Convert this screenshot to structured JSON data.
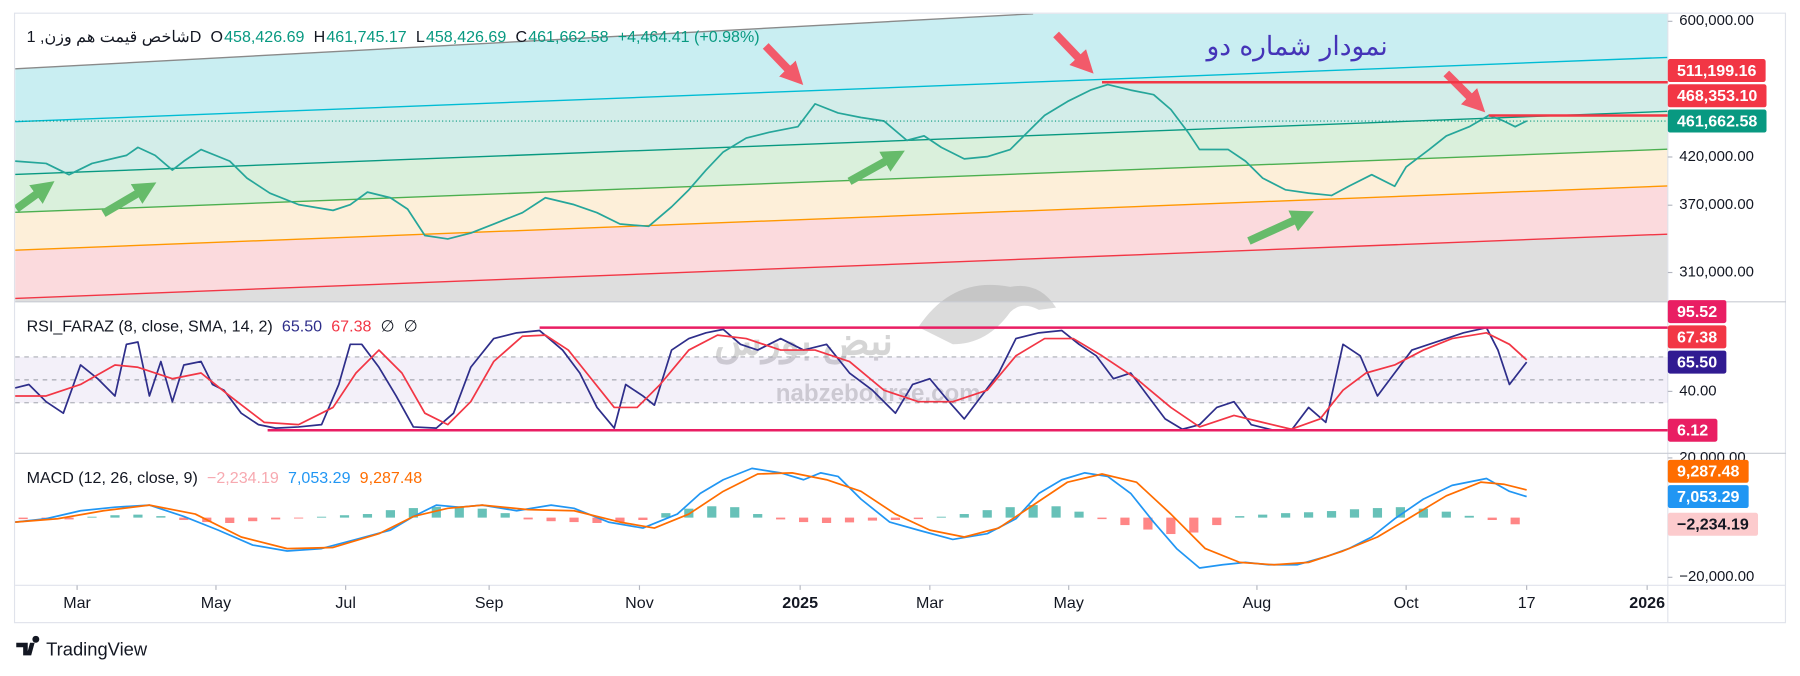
{
  "chart_data": [
    {
      "type": "line",
      "log": true,
      "header": {
        "color": "#131722",
        "items": [
          {
            "text": "شاخص قیمت هم وزن, 1D"
          },
          {
            "key": "O",
            "text": "458,426.69",
            "color": "#089981"
          },
          {
            "key": "H",
            "text": "461,745.17",
            "color": "#089981"
          },
          {
            "key": "L",
            "text": "458,426.69",
            "color": "#089981"
          },
          {
            "key": "C",
            "text": "461,662.58",
            "color": "#089981"
          },
          {
            "text": "+4,464.41 (+0.98%)",
            "color": "#089981"
          }
        ]
      },
      "xlim": [
        13,
        1453
      ],
      "ylim": [
        287000,
        612000
      ],
      "yticks": [
        {
          "value": 600000,
          "label": "600,000.00"
        },
        {
          "value": 420000,
          "label": "420,000.00"
        },
        {
          "value": 370000,
          "label": "370,000.00"
        },
        {
          "value": 310000,
          "label": "310,000.00"
        }
      ],
      "series": [
        {
          "color": "#26a69a",
          "x": [
            13,
            40,
            60,
            80,
            110,
            120,
            135,
            150,
            160,
            175,
            200,
            215,
            235,
            260,
            290,
            305,
            320,
            340,
            355,
            370,
            390,
            410,
            430,
            455,
            475,
            500,
            520,
            540,
            565,
            585,
            600,
            615,
            630,
            650,
            670,
            695,
            710,
            730,
            750,
            770,
            790,
            805,
            820,
            840,
            860,
            880,
            895,
            910,
            930,
            950,
            965,
            985,
            1005,
            1020,
            1035,
            1045,
            1070,
            1085,
            1100,
            1120,
            1140,
            1160,
            1175,
            1195,
            1215,
            1225,
            1245,
            1260,
            1280,
            1297,
            1310,
            1320,
            1330
          ],
          "values": [
            415500,
            413000,
            400900,
            413000,
            421800,
            430800,
            421800,
            405800,
            415500,
            428300,
            415500,
            397300,
            381900,
            370600,
            365000,
            370600,
            383000,
            377300,
            366200,
            341700,
            338600,
            343800,
            352100,
            362800,
            377300,
            370600,
            362800,
            352100,
            350000,
            368400,
            385300,
            405800,
            425600,
            441400,
            448100,
            454800,
            483000,
            471600,
            465900,
            461700,
            438700,
            444000,
            430800,
            418000,
            420400,
            428300,
            448100,
            468600,
            486000,
            500800,
            508000,
            500800,
            494800,
            475800,
            448100,
            428300,
            428300,
            415500,
            397300,
            385300,
            381900,
            379600,
            388900,
            400900,
            388900,
            409200,
            428300,
            444000,
            454800,
            468600,
            461700,
            454800,
            461662.58
          ]
        }
      ],
      "levels": [
        {
          "value": 511199.16,
          "label": "511,199.16",
          "color": "#f23645",
          "line_from": 960
        },
        {
          "value": 468353.1,
          "label": "468,353.10",
          "color": "#f23645",
          "line_from": 1297
        },
        {
          "value": 461662.58,
          "label": "461,662.58",
          "color": "#089981",
          "line_from": 13,
          "line_style": "dotted"
        }
      ]
    },
    {
      "type": "line",
      "header": {
        "color": "#131722",
        "items": [
          {
            "text": "RSI_FARAZ (8, close, SMA, 14, 2)"
          },
          {
            "text": "65.50",
            "color": "#2e2e8a"
          },
          {
            "text": "67.38",
            "color": "#f23645"
          },
          {
            "text": "∅"
          },
          {
            "text": "∅"
          }
        ]
      },
      "xlim": [
        13,
        1453
      ],
      "ylim": [
        -14,
        118
      ],
      "yticks": [
        {
          "value": 40,
          "label": "40.00"
        }
      ],
      "hlines": [
        70,
        50,
        30
      ],
      "band_color": "#7e57c2",
      "series": [
        {
          "color": "#2e2e8a",
          "x": [
            13,
            25,
            40,
            55,
            70,
            85,
            100,
            110,
            120,
            130,
            140,
            150,
            160,
            175,
            185,
            195,
            210,
            225,
            240,
            260,
            280,
            295,
            305,
            315,
            330,
            345,
            360,
            380,
            395,
            410,
            430,
            450,
            470,
            490,
            505,
            520,
            535,
            545,
            560,
            570,
            585,
            600,
            615,
            630,
            645,
            660,
            680,
            700,
            720,
            740,
            760,
            780,
            795,
            810,
            825,
            840,
            855,
            870,
            885,
            905,
            925,
            940,
            955,
            970,
            985,
            1000,
            1015,
            1030,
            1045,
            1060,
            1075,
            1090,
            1110,
            1125,
            1140,
            1155,
            1170,
            1185,
            1200,
            1215,
            1230,
            1245,
            1260,
            1275,
            1295,
            1305,
            1315,
            1330
          ],
          "values": [
            43,
            46,
            31,
            21,
            63,
            51,
            36,
            81,
            83,
            36,
            66,
            31,
            63,
            66,
            46,
            41,
            21,
            11,
            8,
            9,
            11,
            46,
            81,
            81,
            61,
            36,
            9,
            8,
            21,
            61,
            86,
            91,
            93,
            76,
            56,
            26,
            8,
            46,
            36,
            28,
            76,
            86,
            91,
            94,
            81,
            76,
            86,
            76,
            81,
            56,
            41,
            21,
            46,
            51,
            33,
            16,
            36,
            56,
            86,
            91,
            93,
            81,
            71,
            51,
            56,
            36,
            16,
            7,
            11,
            26,
            31,
            11,
            6,
            6.12,
            26,
            13,
            81,
            71,
            36,
            56,
            76,
            81,
            86,
            91,
            95.52,
            76,
            46,
            65.5
          ]
        },
        {
          "color": "#f23645",
          "x": [
            13,
            40,
            70,
            100,
            120,
            150,
            175,
            200,
            230,
            260,
            290,
            310,
            330,
            350,
            370,
            390,
            410,
            430,
            455,
            475,
            495,
            515,
            535,
            555,
            575,
            600,
            625,
            650,
            680,
            710,
            740,
            770,
            800,
            830,
            860,
            885,
            910,
            935,
            960,
            990,
            1020,
            1045,
            1075,
            1100,
            1125,
            1150,
            1170,
            1190,
            1215,
            1240,
            1265,
            1295,
            1315,
            1330
          ],
          "values": [
            36,
            36,
            46,
            63,
            61,
            51,
            56,
            36,
            13,
            11,
            26,
            56,
            76,
            56,
            21,
            11,
            31,
            66,
            88,
            89,
            76,
            51,
            26,
            26,
            46,
            76,
            89,
            86,
            76,
            76,
            66,
            41,
            31,
            31,
            41,
            71,
            86,
            86,
            71,
            51,
            26,
            9,
            19,
            13,
            7,
            16,
            41,
            56,
            63,
            76,
            86,
            91,
            81,
            67.38
          ]
        }
      ],
      "levels": [
        {
          "value": 95.52,
          "label": "95.52",
          "color": "#e91e63",
          "line_from": 470
        },
        {
          "value": 67.38,
          "label": "67.38",
          "color": "#f23645"
        },
        {
          "value": 65.5,
          "label": "65.50",
          "color": "#311b92"
        },
        {
          "value": 6.12,
          "label": "6.12",
          "color": "#e91e63",
          "line_from": 233
        }
      ]
    },
    {
      "type": "line",
      "header": {
        "color": "#131722",
        "items": [
          {
            "text": "MACD (12, 26, close, 9)"
          },
          {
            "text": "−2,234.19",
            "color": "#f7a9b0"
          },
          {
            "text": "7,053.29",
            "color": "#2196f3"
          },
          {
            "text": "9,287.48",
            "color": "#ff6d00"
          }
        ]
      },
      "xlim": [
        13,
        1453
      ],
      "ylim": [
        -22690,
        21538
      ],
      "yticks": [
        {
          "value": 20000,
          "label": "20,000.00"
        },
        {
          "value": -20000,
          "label": "−20,000.00"
        }
      ],
      "xticks": [
        {
          "value": 67,
          "label": "Mar"
        },
        {
          "value": 188,
          "label": "May"
        },
        {
          "value": 301,
          "label": "Jul"
        },
        {
          "value": 426,
          "label": "Sep"
        },
        {
          "value": 557,
          "label": "Nov"
        },
        {
          "value": 697,
          "label": "2025"
        },
        {
          "value": 810,
          "label": "Mar"
        },
        {
          "value": 931,
          "label": "May"
        },
        {
          "value": 1095,
          "label": "Aug"
        },
        {
          "value": 1225,
          "label": "Oct"
        },
        {
          "value": 1330,
          "label": "17"
        },
        {
          "value": 1435,
          "label": "2026"
        }
      ],
      "series": [
        {
          "type": "bar",
          "color": "#26a69a",
          "color_negative": "#ff5252",
          "x": [
            20,
            40,
            60,
            80,
            100,
            120,
            140,
            160,
            180,
            200,
            220,
            240,
            260,
            280,
            300,
            320,
            340,
            360,
            380,
            400,
            420,
            440,
            460,
            480,
            500,
            520,
            540,
            560,
            580,
            600,
            620,
            640,
            660,
            680,
            700,
            720,
            740,
            760,
            780,
            800,
            820,
            840,
            860,
            880,
            900,
            920,
            940,
            960,
            980,
            1000,
            1020,
            1040,
            1060,
            1080,
            1100,
            1120,
            1140,
            1160,
            1180,
            1200,
            1220,
            1240,
            1260,
            1280,
            1300,
            1320
          ],
          "values": [
            -500,
            -800,
            -600,
            300,
            800,
            1000,
            500,
            -800,
            -1500,
            -1800,
            -1200,
            -600,
            -300,
            300,
            800,
            1200,
            2500,
            3200,
            3600,
            3800,
            3000,
            1500,
            -600,
            -1200,
            -1500,
            -1800,
            -1500,
            -800,
            1500,
            3000,
            3800,
            3500,
            1200,
            -600,
            -1500,
            -1800,
            -1600,
            -1000,
            -800,
            -500,
            300,
            1200,
            2500,
            3500,
            4200,
            3800,
            2000,
            -500,
            -2500,
            -4000,
            -5500,
            -5000,
            -2500,
            500,
            1000,
            1500,
            1800,
            2200,
            2800,
            3200,
            3500,
            3000,
            2000,
            600,
            -800,
            -2234.19
          ]
        },
        {
          "color": "#2196f3",
          "x": [
            13,
            40,
            70,
            100,
            130,
            160,
            190,
            220,
            250,
            280,
            310,
            340,
            360,
            380,
            400,
            420,
            450,
            480,
            500,
            530,
            560,
            590,
            610,
            630,
            655,
            680,
            700,
            715,
            730,
            750,
            775,
            800,
            830,
            860,
            885,
            905,
            925,
            945,
            965,
            985,
            1005,
            1025,
            1045,
            1065,
            1085,
            1105,
            1130,
            1155,
            1175,
            1195,
            1215,
            1240,
            1265,
            1295,
            1315,
            1330
          ],
          "values": [
            -1500,
            -400,
            2300,
            3500,
            4200,
            400,
            -4200,
            -9200,
            -11200,
            -10400,
            -7300,
            -4200,
            400,
            4200,
            3500,
            4200,
            2300,
            4200,
            3100,
            -1500,
            -3500,
            1200,
            8100,
            12700,
            16500,
            15000,
            12700,
            15000,
            13800,
            6200,
            -1500,
            -4200,
            -7300,
            -5400,
            -400,
            8100,
            12700,
            15000,
            13800,
            8100,
            -1500,
            -10400,
            -16900,
            -15800,
            -15000,
            -15800,
            -15800,
            -13100,
            -10400,
            -6500,
            -400,
            6200,
            10800,
            13100,
            8800,
            7053.29
          ]
        },
        {
          "color": "#ff6d00",
          "x": [
            13,
            50,
            90,
            130,
            170,
            210,
            250,
            290,
            330,
            360,
            390,
            420,
            460,
            500,
            540,
            570,
            600,
            630,
            660,
            690,
            720,
            750,
            780,
            810,
            840,
            870,
            900,
            930,
            960,
            990,
            1020,
            1050,
            1080,
            1110,
            1140,
            1170,
            1200,
            1230,
            1260,
            1290,
            1310,
            1330
          ],
          "values": [
            -1500,
            -400,
            2300,
            4200,
            1200,
            -6500,
            -10400,
            -10000,
            -5400,
            400,
            3100,
            4200,
            2700,
            2300,
            -1500,
            -3500,
            1200,
            8800,
            14600,
            15000,
            12700,
            8800,
            1200,
            -4200,
            -6500,
            -3500,
            4200,
            11900,
            14600,
            11900,
            1200,
            -10400,
            -15000,
            -15800,
            -15000,
            -11200,
            -6500,
            400,
            7300,
            11900,
            11200,
            9287.48
          ]
        }
      ],
      "levels": [
        {
          "value": 9287.48,
          "label": "9,287.48",
          "color": "#ff6d00"
        },
        {
          "value": 7053.29,
          "label": "7,053.29",
          "color": "#2196f3"
        },
        {
          "value": -2234.19,
          "label": "−2,234.19",
          "color": "#fccbcd",
          "text_color": "#131722"
        }
      ]
    }
  ],
  "annotation": "نمودار شماره دو",
  "watermark": {
    "logo": "نبض بورس",
    "site": "nabzebourse.com"
  },
  "footer": {
    "brand": "TradingView"
  }
}
